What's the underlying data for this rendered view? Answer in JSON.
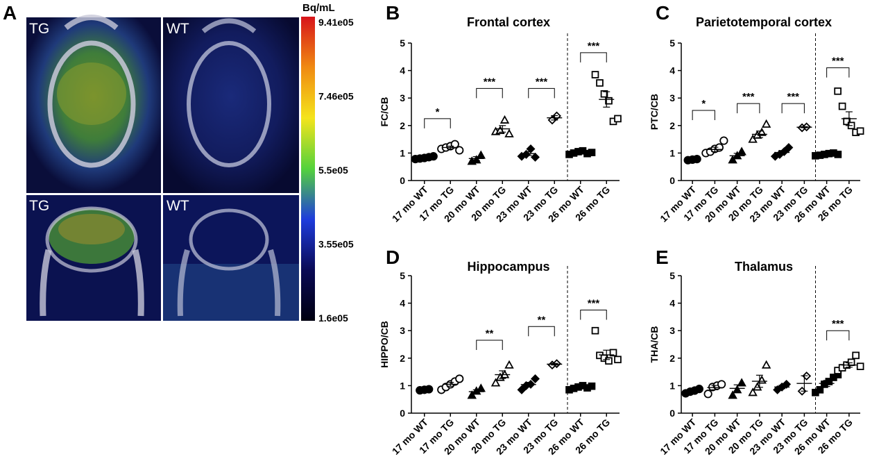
{
  "panels": {
    "A": {
      "letter": "A",
      "colorbar": {
        "unit": "Bq/mL",
        "ticks": [
          "9.41e05",
          "7.46e05",
          "5.5e05",
          "3.55e05",
          "1.6e05"
        ],
        "colors": [
          "#d7141a",
          "#f08a12",
          "#f4e41c",
          "#54d23c",
          "#1e3cdc",
          "#0a0a55",
          "#000010"
        ]
      },
      "images": [
        {
          "label": "TG",
          "view": "axial"
        },
        {
          "label": "WT",
          "view": "axial"
        },
        {
          "label": "TG",
          "view": "coronal"
        },
        {
          "label": "WT",
          "view": "coronal"
        }
      ]
    }
  },
  "chart_data": [
    {
      "type": "scatter",
      "letter": "B",
      "title": "Frontal cortex",
      "ylabel": "FC/CB",
      "ylim": [
        0,
        5
      ],
      "yticks": [
        "0",
        "1",
        "2",
        "3",
        "4",
        "5"
      ],
      "categories": [
        "17 mo WT",
        "17 mo TG",
        "20 mo WT",
        "20 mo TG",
        "23 mo WT",
        "23 mo TG",
        "26 mo WT",
        "26 mo TG"
      ],
      "divider_after": 6,
      "groups": [
        {
          "marker": "circle-filled",
          "points": [
            0.78,
            0.8,
            0.82,
            0.85,
            0.88
          ],
          "mean": 0.83,
          "sem": 0.03
        },
        {
          "marker": "circle-open",
          "points": [
            1.15,
            1.2,
            1.25,
            1.32,
            1.1
          ],
          "mean": 1.2,
          "sem": 0.05
        },
        {
          "marker": "triangle-filled",
          "points": [
            0.7,
            0.75,
            0.92
          ],
          "mean": 0.8,
          "sem": 0.07
        },
        {
          "marker": "triangle-open",
          "points": [
            1.78,
            1.82,
            2.2,
            1.7
          ],
          "mean": 1.88,
          "sem": 0.12
        },
        {
          "marker": "diamond-filled",
          "points": [
            0.88,
            0.95,
            1.15,
            0.85
          ],
          "mean": 0.98,
          "sem": 0.07
        },
        {
          "marker": "diamond-open",
          "points": [
            2.2,
            2.35
          ],
          "mean": 2.28,
          "sem": 0.08
        },
        {
          "marker": "square-filled",
          "points": [
            0.95,
            1.0,
            1.05,
            1.08,
            0.98,
            1.02
          ],
          "mean": 1.02,
          "sem": 0.02
        },
        {
          "marker": "square-open",
          "points": [
            3.85,
            3.55,
            3.15,
            2.9,
            2.15,
            2.25
          ],
          "mean": 2.95,
          "sem": 0.28
        }
      ],
      "brackets": [
        {
          "from": 0,
          "to": 1,
          "y": 2.25,
          "label": "*"
        },
        {
          "from": 2,
          "to": 3,
          "y": 3.35,
          "label": "***"
        },
        {
          "from": 4,
          "to": 5,
          "y": 3.35,
          "label": "***"
        },
        {
          "from": 6,
          "to": 7,
          "y": 4.65,
          "label": "***"
        }
      ]
    },
    {
      "type": "scatter",
      "letter": "C",
      "title": "Parietotemporal cortex",
      "ylabel": "PTC/CB",
      "ylim": [
        0,
        5
      ],
      "yticks": [
        "0",
        "1",
        "2",
        "3",
        "4",
        "5"
      ],
      "categories": [
        "17 mo WT",
        "17 mo TG",
        "20 mo WT",
        "20 mo TG",
        "23 mo WT",
        "23 mo TG",
        "26 mo WT",
        "26 mo TG"
      ],
      "divider_after": 6,
      "groups": [
        {
          "marker": "circle-filled",
          "points": [
            0.74,
            0.76,
            0.78
          ],
          "mean": 0.76,
          "sem": 0.01
        },
        {
          "marker": "circle-open",
          "points": [
            1.0,
            1.05,
            1.15,
            1.2,
            1.45
          ],
          "mean": 1.13,
          "sem": 0.08
        },
        {
          "marker": "triangle-filled",
          "points": [
            0.75,
            0.9,
            1.05
          ],
          "mean": 0.9,
          "sem": 0.09
        },
        {
          "marker": "triangle-open",
          "points": [
            1.5,
            1.65,
            1.75,
            2.05
          ],
          "mean": 1.68,
          "sem": 0.12
        },
        {
          "marker": "diamond-filled",
          "points": [
            0.88,
            0.95,
            1.05,
            1.2
          ],
          "mean": 1.02,
          "sem": 0.07
        },
        {
          "marker": "diamond-open",
          "points": [
            1.92,
            1.95
          ],
          "mean": 1.94,
          "sem": 0.02
        },
        {
          "marker": "square-filled",
          "points": [
            0.9,
            0.92,
            0.95,
            0.98,
            1.0,
            0.95
          ],
          "mean": 0.95,
          "sem": 0.02
        },
        {
          "marker": "square-open",
          "points": [
            3.25,
            2.7,
            2.15,
            2.0,
            1.75,
            1.8
          ],
          "mean": 2.25,
          "sem": 0.25
        }
      ],
      "brackets": [
        {
          "from": 0,
          "to": 1,
          "y": 2.55,
          "label": "*"
        },
        {
          "from": 2,
          "to": 3,
          "y": 2.8,
          "label": "***"
        },
        {
          "from": 4,
          "to": 5,
          "y": 2.8,
          "label": "***"
        },
        {
          "from": 6,
          "to": 7,
          "y": 4.1,
          "label": "***"
        }
      ]
    },
    {
      "type": "scatter",
      "letter": "D",
      "title": "Hippocampus",
      "ylabel": "HIPPO/CB",
      "ylim": [
        0,
        5
      ],
      "yticks": [
        "0",
        "1",
        "2",
        "3",
        "4",
        "5"
      ],
      "categories": [
        "17 mo WT",
        "17 mo TG",
        "20 mo WT",
        "20 mo TG",
        "23 mo WT",
        "23 mo TG",
        "26 mo WT",
        "26 mo TG"
      ],
      "divider_after": 6,
      "groups": [
        {
          "marker": "circle-filled",
          "points": [
            0.83,
            0.85,
            0.87
          ],
          "mean": 0.85,
          "sem": 0.01
        },
        {
          "marker": "circle-open",
          "points": [
            0.85,
            0.95,
            1.05,
            1.15,
            1.25
          ],
          "mean": 1.05,
          "sem": 0.07
        },
        {
          "marker": "triangle-filled",
          "points": [
            0.65,
            0.8,
            0.9
          ],
          "mean": 0.78,
          "sem": 0.07
        },
        {
          "marker": "triangle-open",
          "points": [
            1.1,
            1.3,
            1.4,
            1.75
          ],
          "mean": 1.4,
          "sem": 0.14
        },
        {
          "marker": "diamond-filled",
          "points": [
            0.85,
            1.0,
            1.05,
            1.25
          ],
          "mean": 1.04,
          "sem": 0.08
        },
        {
          "marker": "diamond-open",
          "points": [
            1.75,
            1.8
          ],
          "mean": 1.78,
          "sem": 0.03
        },
        {
          "marker": "square-filled",
          "points": [
            0.85,
            0.9,
            0.95,
            1.0,
            0.92,
            0.98
          ],
          "mean": 0.93,
          "sem": 0.02
        },
        {
          "marker": "square-open",
          "points": [
            3.0,
            2.1,
            2.0,
            1.9,
            2.2,
            1.95
          ],
          "mean": 2.12,
          "sem": 0.17
        }
      ],
      "brackets": [
        {
          "from": 2,
          "to": 3,
          "y": 2.65,
          "label": "**"
        },
        {
          "from": 4,
          "to": 5,
          "y": 3.15,
          "label": "**"
        },
        {
          "from": 6,
          "to": 7,
          "y": 3.75,
          "label": "***"
        }
      ]
    },
    {
      "type": "scatter",
      "letter": "E",
      "title": "Thalamus",
      "ylabel": "THA/CB",
      "ylim": [
        0,
        5
      ],
      "yticks": [
        "0",
        "1",
        "2",
        "3",
        "4",
        "5"
      ],
      "categories": [
        "17 mo WT",
        "17 mo TG",
        "20 mo WT",
        "20 mo TG",
        "23 mo WT",
        "23 mo TG",
        "26 mo WT",
        "26 mo TG"
      ],
      "divider_after": 6,
      "groups": [
        {
          "marker": "circle-filled",
          "points": [
            0.72,
            0.78,
            0.82,
            0.88
          ],
          "mean": 0.8,
          "sem": 0.03
        },
        {
          "marker": "circle-open",
          "points": [
            0.7,
            0.95,
            1.0,
            1.05
          ],
          "mean": 0.93,
          "sem": 0.08
        },
        {
          "marker": "triangle-filled",
          "points": [
            0.65,
            0.85,
            1.1
          ],
          "mean": 0.9,
          "sem": 0.13
        },
        {
          "marker": "triangle-open",
          "points": [
            0.75,
            0.95,
            1.2,
            1.75
          ],
          "mean": 1.16,
          "sem": 0.22
        },
        {
          "marker": "diamond-filled",
          "points": [
            0.85,
            0.95,
            1.05
          ],
          "mean": 0.95,
          "sem": 0.06
        },
        {
          "marker": "diamond-open",
          "points": [
            0.8,
            1.35
          ],
          "mean": 1.08,
          "sem": 0.28
        },
        {
          "marker": "square-filled",
          "points": [
            0.75,
            0.85,
            1.05,
            1.15,
            1.3,
            1.4
          ],
          "mean": 1.08,
          "sem": 0.11
        },
        {
          "marker": "square-open",
          "points": [
            1.55,
            1.65,
            1.75,
            1.85,
            2.1,
            1.7
          ],
          "mean": 1.75,
          "sem": 0.08
        }
      ],
      "brackets": [
        {
          "from": 6,
          "to": 7,
          "y": 3.0,
          "label": "***"
        }
      ]
    }
  ]
}
